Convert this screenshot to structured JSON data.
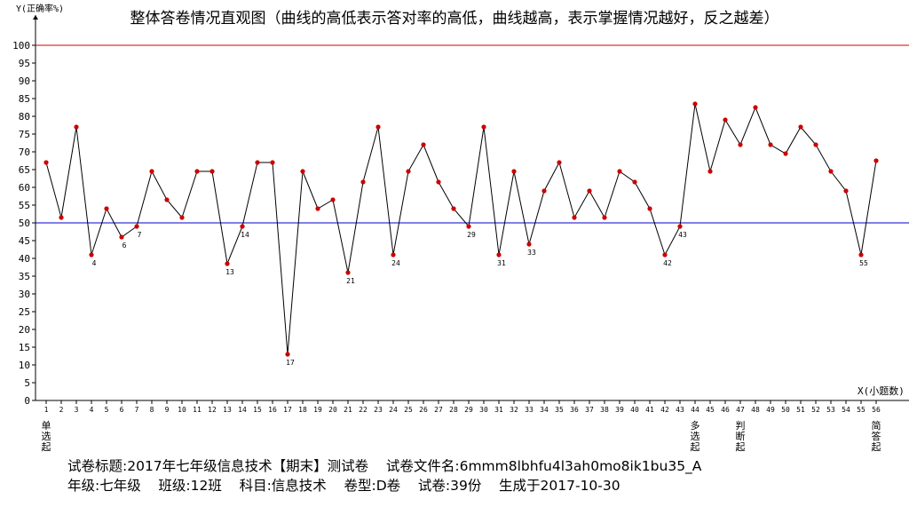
{
  "chart_data": {
    "type": "line",
    "title": "整体答卷情况直观图（曲线的高低表示答对率的高低，曲线越高，表示掌握情况越好，反之越差）",
    "ylabel": "Y(正确率%)",
    "xlabel": "X(小题数)",
    "ylim": [
      0,
      100
    ],
    "yticks": [
      0,
      5,
      10,
      15,
      20,
      25,
      30,
      35,
      40,
      45,
      50,
      55,
      60,
      65,
      70,
      75,
      80,
      85,
      90,
      95,
      100
    ],
    "reference_lines": [
      {
        "y": 100,
        "color": "#d40000"
      },
      {
        "y": 50,
        "color": "#0000cc"
      }
    ],
    "x": [
      1,
      2,
      3,
      4,
      5,
      6,
      7,
      8,
      9,
      10,
      11,
      12,
      13,
      14,
      15,
      16,
      17,
      18,
      19,
      20,
      21,
      22,
      23,
      24,
      25,
      26,
      27,
      28,
      29,
      30,
      31,
      32,
      33,
      34,
      35,
      36,
      37,
      38,
      39,
      40,
      41,
      42,
      43,
      44,
      45,
      46,
      47,
      48,
      49,
      50,
      51,
      52,
      53,
      54,
      55,
      56
    ],
    "values": [
      67,
      51.5,
      77,
      41,
      54,
      46,
      49,
      64.5,
      56.5,
      51.5,
      64.5,
      64.5,
      38.5,
      49,
      67,
      67,
      13,
      64.5,
      54,
      56.5,
      36,
      61.5,
      77,
      41,
      64.5,
      72,
      61.5,
      54,
      49,
      77,
      41,
      64.5,
      44,
      59,
      67,
      51.5,
      59,
      51.5,
      64.5,
      61.5,
      54,
      41,
      49,
      83.5,
      64.5,
      79,
      72,
      82.5,
      72,
      69.5,
      77,
      72,
      64.5,
      59,
      41,
      67.5
    ],
    "point_labels": [
      {
        "x": 4,
        "label": "4"
      },
      {
        "x": 6,
        "label": "6"
      },
      {
        "x": 7,
        "label": "7"
      },
      {
        "x": 13,
        "label": "13"
      },
      {
        "x": 14,
        "label": "14"
      },
      {
        "x": 17,
        "label": "17"
      },
      {
        "x": 21,
        "label": "21"
      },
      {
        "x": 24,
        "label": "24"
      },
      {
        "x": 29,
        "label": "29"
      },
      {
        "x": 31,
        "label": "31"
      },
      {
        "x": 33,
        "label": "33"
      },
      {
        "x": 42,
        "label": "42"
      },
      {
        "x": 43,
        "label": "43"
      },
      {
        "x": 55,
        "label": "55"
      }
    ],
    "section_markers": [
      {
        "x": 1,
        "label": "单选起"
      },
      {
        "x": 44,
        "label": "多选起"
      },
      {
        "x": 47,
        "label": "判断起"
      },
      {
        "x": 56,
        "label": "简答起"
      }
    ],
    "line_color": "#000000",
    "point_color": "#cc0000"
  },
  "info": {
    "line1": "试卷标题:2017年七年级信息技术【期末】测试卷    试卷文件名:6mmm8lbhfu4l3ah0mo8ik1bu35_A",
    "line2": "年级:七年级    班级:12班    科目:信息技术    卷型:D卷    试卷:39份    生成于2017-10-30"
  }
}
